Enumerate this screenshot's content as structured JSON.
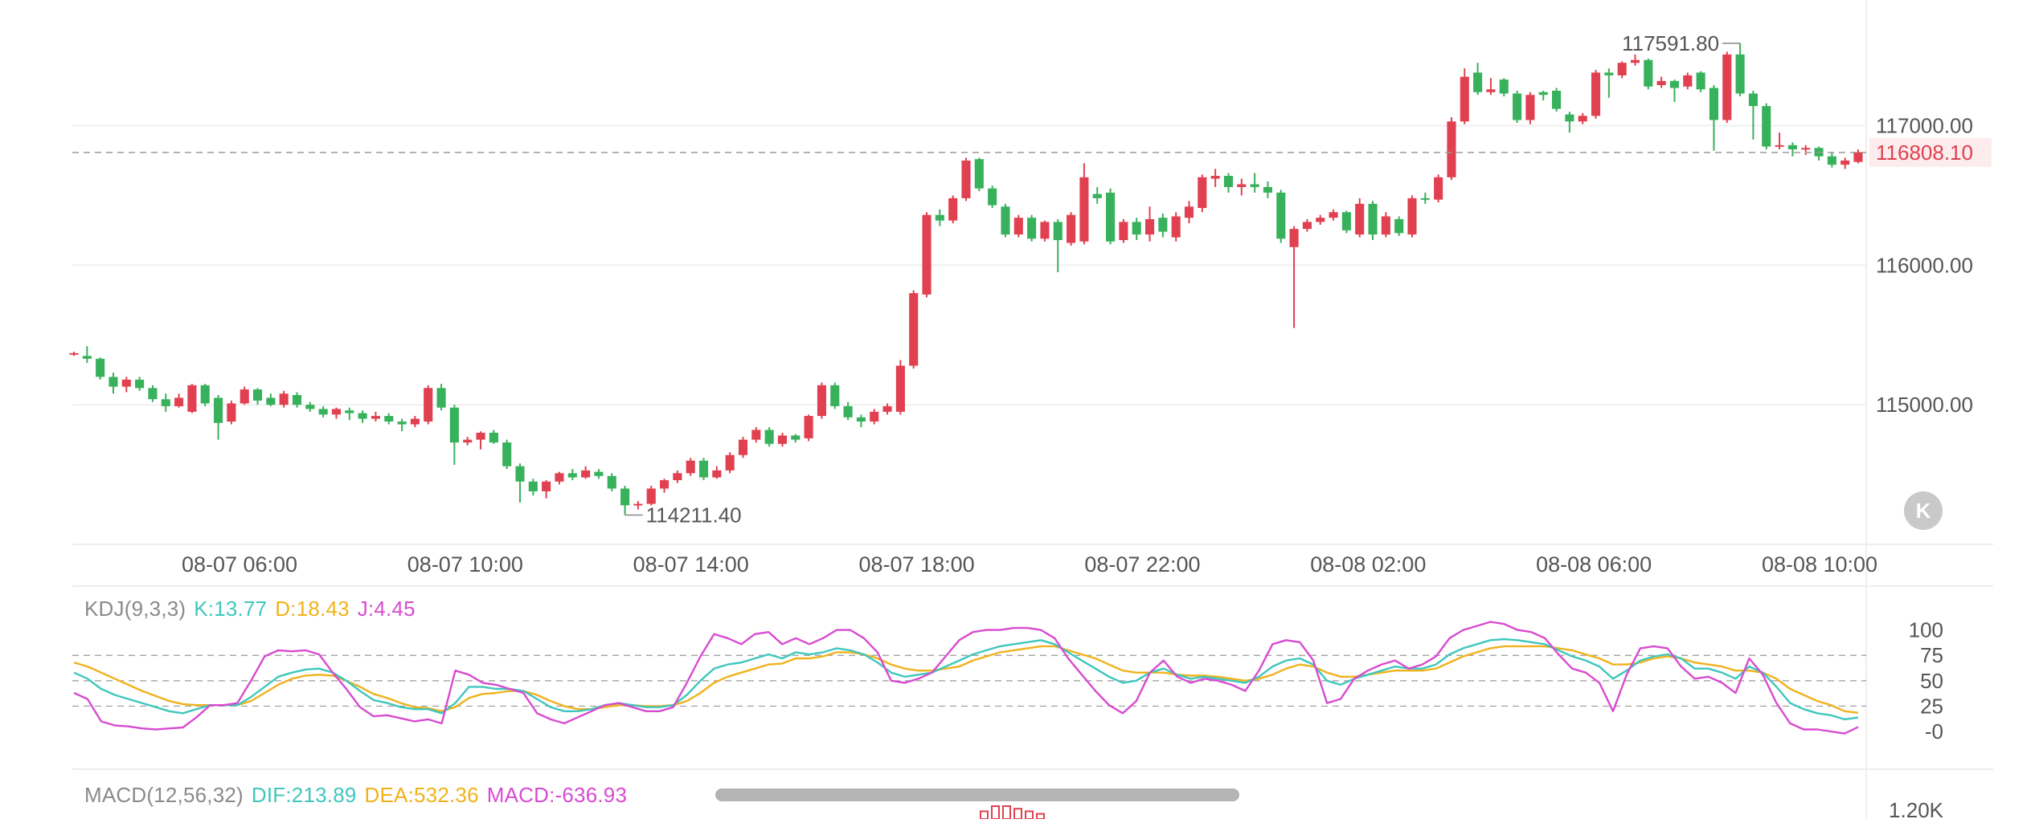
{
  "chart_data": {
    "type": "candlestick",
    "title": "",
    "x_tick_labels": [
      "08-07 06:00",
      "08-07 10:00",
      "08-07 14:00",
      "08-07 18:00",
      "08-07 22:00",
      "08-08 02:00",
      "08-08 06:00",
      "08-08 10:00"
    ],
    "y_tick_labels": [
      "117000.00",
      "116000.00",
      "115000.00"
    ],
    "ylim": [
      114000,
      117900
    ],
    "current_price": "116808.10",
    "high_label": "117591.80",
    "low_label": "114211.40",
    "up_color": "#e0404f",
    "down_color": "#38b15c",
    "candles": [
      [
        115370,
        115370,
        115380,
        115350
      ],
      [
        115350,
        115330,
        115420,
        115300
      ],
      [
        115330,
        115200,
        115340,
        115180
      ],
      [
        115200,
        115130,
        115230,
        115080
      ],
      [
        115130,
        115180,
        115200,
        115090
      ],
      [
        115180,
        115120,
        115200,
        115100
      ],
      [
        115120,
        115040,
        115140,
        115020
      ],
      [
        115040,
        114990,
        115080,
        114950
      ],
      [
        114990,
        115050,
        115080,
        114980
      ],
      [
        114950,
        115140,
        115150,
        114940
      ],
      [
        115140,
        115010,
        115150,
        114990
      ],
      [
        115050,
        114870,
        115070,
        114750
      ],
      [
        114880,
        115010,
        115030,
        114860
      ],
      [
        115010,
        115110,
        115130,
        115000
      ],
      [
        115110,
        115030,
        115120,
        115000
      ],
      [
        115050,
        115000,
        115080,
        114990
      ],
      [
        115000,
        115080,
        115100,
        114980
      ],
      [
        115070,
        115000,
        115090,
        114980
      ],
      [
        115000,
        114970,
        115020,
        114950
      ],
      [
        114970,
        114930,
        114990,
        114910
      ],
      [
        114930,
        114970,
        114980,
        114900
      ],
      [
        114960,
        114940,
        114980,
        114890
      ],
      [
        114940,
        114900,
        114960,
        114870
      ],
      [
        114900,
        114920,
        114950,
        114880
      ],
      [
        114920,
        114880,
        114940,
        114860
      ],
      [
        114880,
        114860,
        114900,
        114810
      ],
      [
        114860,
        114900,
        114920,
        114840
      ],
      [
        114880,
        115120,
        115140,
        114860
      ],
      [
        115120,
        114980,
        115150,
        114960
      ],
      [
        114980,
        114730,
        115000,
        114570
      ],
      [
        114730,
        114750,
        114770,
        114710
      ],
      [
        114750,
        114800,
        114810,
        114680
      ],
      [
        114800,
        114730,
        114820,
        114720
      ],
      [
        114730,
        114560,
        114750,
        114540
      ],
      [
        114560,
        114450,
        114580,
        114300
      ],
      [
        114450,
        114380,
        114470,
        114350
      ],
      [
        114380,
        114450,
        114460,
        114330
      ],
      [
        114450,
        114510,
        114520,
        114430
      ],
      [
        114510,
        114480,
        114540,
        114460
      ],
      [
        114480,
        114530,
        114560,
        114470
      ],
      [
        114520,
        114490,
        114540,
        114470
      ],
      [
        114490,
        114400,
        114510,
        114380
      ],
      [
        114400,
        114280,
        114420,
        114210
      ],
      [
        114290,
        114290,
        114310,
        114250
      ],
      [
        114290,
        114400,
        114420,
        114280
      ],
      [
        114400,
        114460,
        114470,
        114370
      ],
      [
        114460,
        114510,
        114530,
        114440
      ],
      [
        114510,
        114600,
        114620,
        114490
      ],
      [
        114600,
        114480,
        114620,
        114460
      ],
      [
        114480,
        114530,
        114560,
        114470
      ],
      [
        114530,
        114640,
        114660,
        114510
      ],
      [
        114640,
        114750,
        114770,
        114620
      ],
      [
        114750,
        114820,
        114840,
        114730
      ],
      [
        114820,
        114720,
        114840,
        114700
      ],
      [
        114720,
        114780,
        114800,
        114700
      ],
      [
        114780,
        114750,
        114790,
        114730
      ],
      [
        114760,
        114920,
        114930,
        114740
      ],
      [
        114920,
        115140,
        115160,
        114900
      ],
      [
        115140,
        114990,
        115160,
        114970
      ],
      [
        114990,
        114910,
        115020,
        114890
      ],
      [
        114910,
        114880,
        114930,
        114840
      ],
      [
        114880,
        114950,
        114970,
        114860
      ],
      [
        114950,
        114990,
        115010,
        114930
      ],
      [
        114950,
        115280,
        115320,
        114930
      ],
      [
        115280,
        115800,
        115820,
        115260
      ],
      [
        115790,
        116360,
        116380,
        115770
      ],
      [
        116360,
        116320,
        116400,
        116280
      ],
      [
        116320,
        116480,
        116500,
        116300
      ],
      [
        116480,
        116750,
        116770,
        116460
      ],
      [
        116760,
        116550,
        116770,
        116530
      ],
      [
        116550,
        116430,
        116570,
        116410
      ],
      [
        116420,
        116220,
        116440,
        116200
      ],
      [
        116220,
        116340,
        116360,
        116200
      ],
      [
        116340,
        116190,
        116360,
        116170
      ],
      [
        116190,
        116310,
        116320,
        116170
      ],
      [
        116310,
        116180,
        116330,
        115950
      ],
      [
        116160,
        116360,
        116380,
        116140
      ],
      [
        116170,
        116630,
        116730,
        116150
      ],
      [
        116510,
        116480,
        116560,
        116440
      ],
      [
        116520,
        116170,
        116550,
        116150
      ],
      [
        116180,
        116310,
        116330,
        116160
      ],
      [
        116310,
        116220,
        116340,
        116180
      ],
      [
        116220,
        116330,
        116420,
        116170
      ],
      [
        116340,
        116240,
        116370,
        116200
      ],
      [
        116200,
        116350,
        116380,
        116170
      ],
      [
        116340,
        116420,
        116460,
        116300
      ],
      [
        116410,
        116630,
        116650,
        116380
      ],
      [
        116620,
        116640,
        116690,
        116560
      ],
      [
        116640,
        116560,
        116660,
        116520
      ],
      [
        116560,
        116580,
        116620,
        116500
      ],
      [
        116580,
        116560,
        116660,
        116520
      ],
      [
        116560,
        116520,
        116600,
        116480
      ],
      [
        116520,
        116190,
        116540,
        116160
      ],
      [
        116130,
        116260,
        116280,
        115550
      ],
      [
        116260,
        116310,
        116330,
        116240
      ],
      [
        116310,
        116340,
        116360,
        116290
      ],
      [
        116340,
        116380,
        116400,
        116320
      ],
      [
        116380,
        116250,
        116390,
        116230
      ],
      [
        116220,
        116440,
        116480,
        116200
      ],
      [
        116440,
        116220,
        116460,
        116180
      ],
      [
        116220,
        116350,
        116380,
        116200
      ],
      [
        116330,
        116230,
        116350,
        116210
      ],
      [
        116220,
        116480,
        116500,
        116200
      ],
      [
        116480,
        116470,
        116520,
        116440
      ],
      [
        116470,
        116630,
        116650,
        116450
      ],
      [
        116630,
        117030,
        117060,
        116610
      ],
      [
        117030,
        117350,
        117410,
        117010
      ],
      [
        117380,
        117240,
        117450,
        117220
      ],
      [
        117240,
        117260,
        117340,
        117220
      ],
      [
        117330,
        117230,
        117340,
        117210
      ],
      [
        117230,
        117040,
        117250,
        117020
      ],
      [
        117040,
        117220,
        117240,
        117010
      ],
      [
        117240,
        117220,
        117250,
        117180
      ],
      [
        117250,
        117120,
        117270,
        117100
      ],
      [
        117080,
        117030,
        117100,
        116950
      ],
      [
        117030,
        117070,
        117090,
        117010
      ],
      [
        117070,
        117380,
        117400,
        117050
      ],
      [
        117380,
        117360,
        117410,
        117200
      ],
      [
        117360,
        117450,
        117460,
        117340
      ],
      [
        117450,
        117470,
        117510,
        117430
      ],
      [
        117470,
        117280,
        117480,
        117260
      ],
      [
        117290,
        117320,
        117350,
        117270
      ],
      [
        117320,
        117270,
        117330,
        117170
      ],
      [
        117280,
        117360,
        117380,
        117260
      ],
      [
        117380,
        117260,
        117390,
        117240
      ],
      [
        117270,
        117040,
        117290,
        116820
      ],
      [
        117040,
        117510,
        117530,
        117020
      ],
      [
        117510,
        117230,
        117590,
        117210
      ],
      [
        117230,
        117140,
        117250,
        116900
      ],
      [
        117140,
        116850,
        117160,
        116830
      ],
      [
        116850,
        116860,
        116950,
        116830
      ],
      [
        116860,
        116830,
        116880,
        116780
      ],
      [
        116830,
        116840,
        116860,
        116790
      ],
      [
        116840,
        116780,
        116850,
        116750
      ],
      [
        116780,
        116720,
        116810,
        116700
      ],
      [
        116720,
        116750,
        116770,
        116690
      ],
      [
        116740,
        116810,
        116830,
        116730
      ]
    ],
    "kdj": {
      "label": "KDJ(9,3,3)",
      "k_label": "K:13.77",
      "d_label": "D:18.43",
      "j_label": "J:4.45",
      "ticks": [
        "100",
        "75",
        "50",
        "25",
        "-0"
      ],
      "ylim": [
        -15,
        110
      ],
      "k": [
        58,
        52,
        42,
        36,
        32,
        28,
        24,
        20,
        18,
        22,
        26,
        26,
        26,
        34,
        44,
        54,
        58,
        61,
        62,
        58,
        50,
        40,
        31,
        28,
        24,
        22,
        22,
        18,
        28,
        44,
        44,
        42,
        42,
        40,
        32,
        24,
        20,
        20,
        22,
        26,
        28,
        26,
        24,
        24,
        26,
        36,
        50,
        62,
        66,
        68,
        72,
        76,
        72,
        78,
        76,
        78,
        82,
        80,
        76,
        68,
        58,
        54,
        56,
        58,
        64,
        70,
        76,
        80,
        84,
        86,
        88,
        90,
        86,
        78,
        70,
        62,
        54,
        48,
        50,
        58,
        62,
        56,
        52,
        54,
        52,
        50,
        48,
        54,
        64,
        70,
        72,
        66,
        50,
        46,
        52,
        56,
        60,
        64,
        62,
        62,
        66,
        76,
        82,
        86,
        90,
        91,
        90,
        88,
        86,
        80,
        74,
        70,
        64,
        52,
        60,
        70,
        74,
        76,
        72,
        62,
        62,
        58,
        52,
        64,
        58,
        44,
        28,
        22,
        18,
        16,
        12,
        13.77
      ],
      "d": [
        68,
        64,
        58,
        52,
        46,
        40,
        35,
        30,
        27,
        26,
        26,
        26,
        26,
        30,
        38,
        46,
        52,
        55,
        56,
        55,
        50,
        44,
        37,
        33,
        28,
        24,
        23,
        20,
        24,
        33,
        37,
        38,
        40,
        40,
        36,
        30,
        25,
        22,
        22,
        24,
        26,
        26,
        25,
        25,
        26,
        30,
        38,
        48,
        54,
        58,
        62,
        66,
        67,
        72,
        72,
        74,
        78,
        78,
        76,
        72,
        66,
        62,
        60,
        60,
        62,
        64,
        70,
        74,
        78,
        80,
        82,
        84,
        84,
        80,
        76,
        72,
        66,
        60,
        58,
        58,
        58,
        56,
        55,
        55,
        54,
        52,
        50,
        52,
        56,
        62,
        66,
        64,
        58,
        54,
        54,
        56,
        58,
        60,
        60,
        60,
        62,
        68,
        74,
        78,
        82,
        84,
        84,
        84,
        84,
        82,
        80,
        76,
        72,
        66,
        66,
        68,
        72,
        74,
        72,
        68,
        66,
        64,
        60,
        60,
        58,
        52,
        42,
        36,
        30,
        26,
        20,
        18.43
      ],
      "j": [
        38,
        32,
        10,
        6,
        5,
        3,
        2,
        3,
        4,
        14,
        26,
        26,
        28,
        50,
        74,
        80,
        79,
        80,
        76,
        58,
        42,
        24,
        15,
        16,
        13,
        10,
        12,
        8,
        60,
        56,
        48,
        46,
        42,
        38,
        18,
        12,
        8,
        14,
        20,
        26,
        28,
        24,
        20,
        20,
        24,
        48,
        74,
        96,
        92,
        86,
        96,
        98,
        86,
        92,
        86,
        92,
        100,
        100,
        92,
        78,
        50,
        48,
        52,
        58,
        74,
        90,
        98,
        100,
        100,
        102,
        102,
        100,
        92,
        72,
        56,
        40,
        26,
        18,
        30,
        58,
        70,
        54,
        48,
        52,
        50,
        46,
        40,
        60,
        86,
        90,
        88,
        70,
        28,
        32,
        52,
        60,
        66,
        70,
        62,
        66,
        74,
        92,
        100,
        104,
        108,
        106,
        100,
        98,
        92,
        76,
        62,
        58,
        48,
        20,
        56,
        82,
        84,
        82,
        64,
        52,
        54,
        48,
        38,
        72,
        56,
        28,
        8,
        2,
        2,
        0,
        -2,
        4.45
      ]
    },
    "macd": {
      "label": "MACD(12,56,32)",
      "dif_label": "DIF:213.89",
      "dea_label": "DEA:532.36",
      "macd_label": "MACD:-636.93",
      "tick": "1.20K",
      "bars": [
        6,
        10,
        10,
        8,
        6,
        4
      ]
    }
  },
  "ui": {
    "back_button_label": "K",
    "back_button_icon": "collapse-left-icon"
  }
}
